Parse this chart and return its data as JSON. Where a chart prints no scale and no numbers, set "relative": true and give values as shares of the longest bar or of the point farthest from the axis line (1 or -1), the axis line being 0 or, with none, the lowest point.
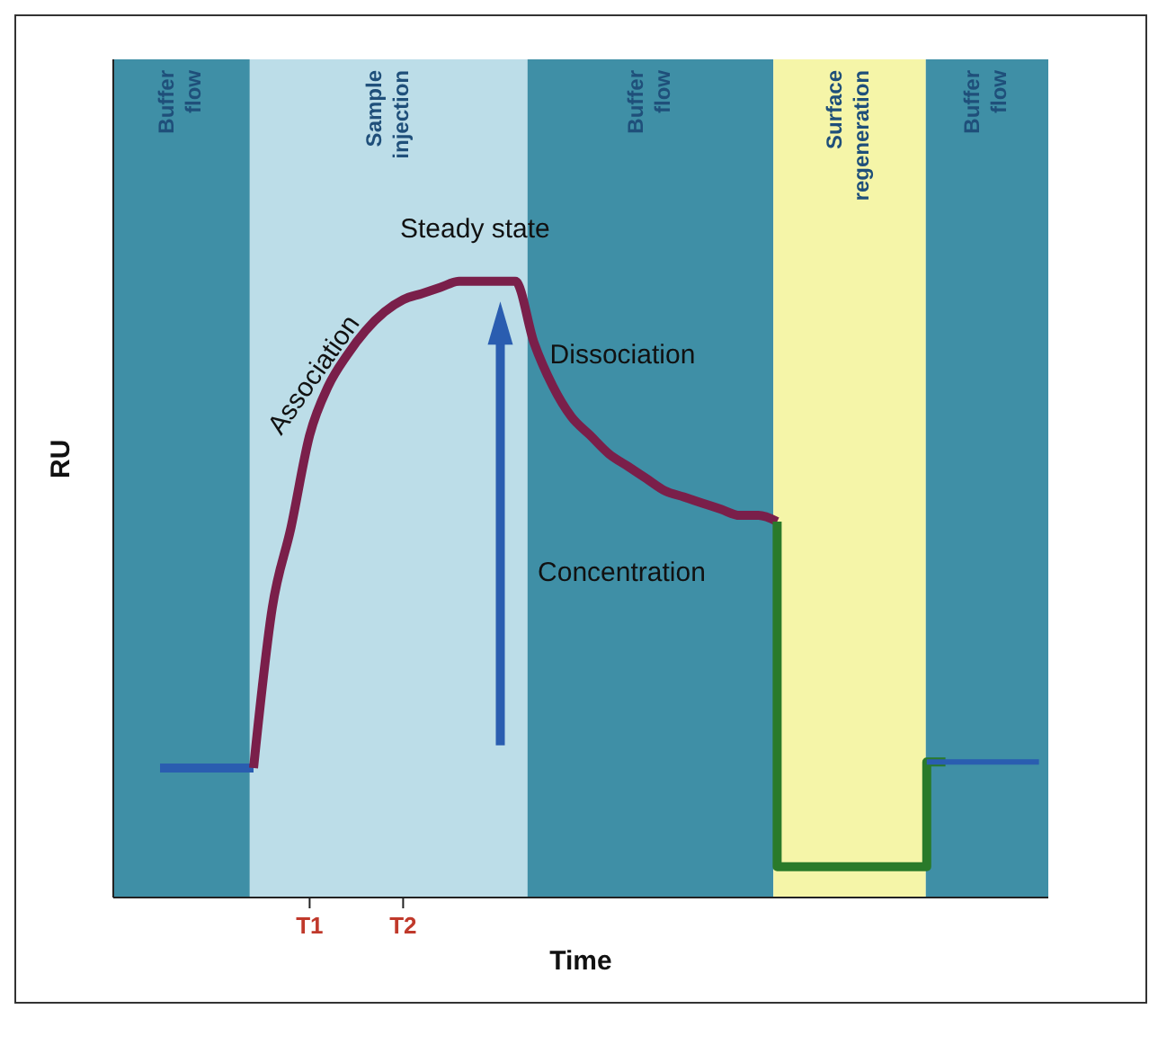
{
  "chart_data": {
    "type": "line",
    "relative": true,
    "xlabel": "Time",
    "ylabel": "RU",
    "tick_labels": "x",
    "categories": [
      null,
      null,
      null,
      null,
      null,
      null,
      null,
      null,
      null,
      null,
      "T1",
      null,
      null,
      null,
      null,
      "T2",
      null,
      null,
      null,
      null,
      null,
      null,
      null,
      null,
      null,
      null,
      null,
      null,
      null,
      null,
      null,
      null,
      null,
      null,
      null,
      null,
      null,
      null,
      null,
      null,
      null,
      null,
      null,
      null,
      null,
      null,
      null,
      null,
      null,
      null
    ],
    "series": [
      {
        "color": "#2a5db0",
        "values": [
          null,
          null,
          0.21,
          0.21,
          0.21,
          0.21,
          0.21,
          0.21,
          null,
          null,
          null,
          null,
          null,
          null,
          null,
          null,
          null,
          null,
          null,
          null,
          null,
          null,
          null,
          null,
          null,
          null,
          null,
          null,
          null,
          null,
          null,
          null,
          null,
          null,
          null,
          null,
          null,
          null,
          null,
          null,
          null,
          null,
          null,
          null,
          null,
          null,
          null,
          null,
          null,
          null
        ]
      },
      {
        "color": "#7a1f4a",
        "values": [
          null,
          null,
          null,
          null,
          null,
          null,
          null,
          0.21,
          0.47,
          0.6,
          0.75,
          0.83,
          0.88,
          0.92,
          0.95,
          0.97,
          0.98,
          0.99,
          1.0,
          1.0,
          1.0,
          1.0,
          0.9,
          0.83,
          0.78,
          0.75,
          0.72,
          0.7,
          0.68,
          0.66,
          0.65,
          0.64,
          0.63,
          0.62,
          0.62,
          0.61,
          null,
          null,
          null,
          null,
          null,
          null,
          null,
          null,
          null,
          null,
          null,
          null,
          null,
          null
        ]
      },
      {
        "type": "step",
        "color": "#2a7a2a",
        "values": [
          null,
          null,
          null,
          null,
          null,
          null,
          null,
          null,
          null,
          null,
          null,
          null,
          null,
          null,
          null,
          null,
          null,
          null,
          null,
          null,
          null,
          null,
          null,
          null,
          null,
          null,
          null,
          null,
          null,
          null,
          null,
          null,
          null,
          null,
          null,
          0.61,
          0.05,
          0.05,
          0.05,
          0.05,
          0.05,
          0.05,
          0.05,
          0.05,
          0.22,
          null,
          null,
          null,
          null,
          null
        ]
      },
      {
        "color": "#2a5db0",
        "values": [
          null,
          null,
          null,
          null,
          null,
          null,
          null,
          null,
          null,
          null,
          null,
          null,
          null,
          null,
          null,
          null,
          null,
          null,
          null,
          null,
          null,
          null,
          null,
          null,
          null,
          null,
          null,
          null,
          null,
          null,
          null,
          null,
          null,
          null,
          null,
          null,
          null,
          null,
          null,
          null,
          null,
          null,
          null,
          0.22,
          0.22,
          0.22,
          0.22,
          0.22,
          0.22,
          0.22
        ]
      }
    ],
    "annotations": [
      "Buffer flow",
      "Sample injection",
      "Buffer flow",
      "Surface regeneration",
      "Buffer flow",
      "Association",
      "Steady state",
      "Dissociation",
      "Concentration"
    ]
  }
}
